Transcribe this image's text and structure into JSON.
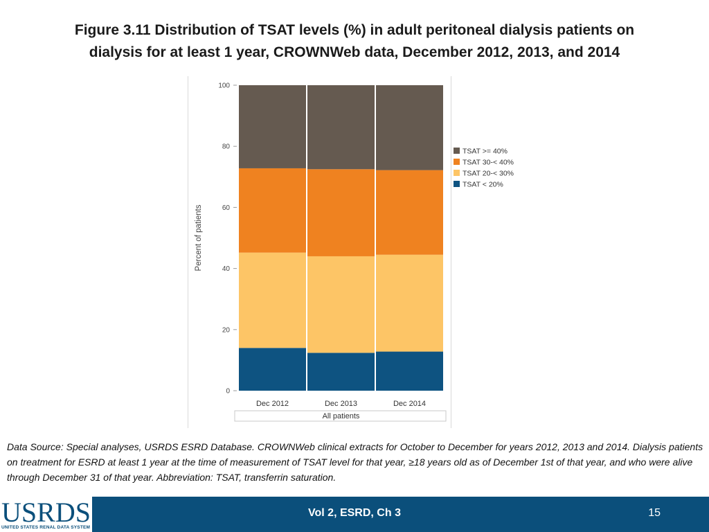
{
  "title_line1": "Figure 3.11 Distribution of TSAT levels (%) in adult peritoneal dialysis patients on",
  "title_line2": "dialysis for at least 1 year, CROWNWeb data, December 2012, 2013, and 2014",
  "chart_data": {
    "type": "bar",
    "stacked": true,
    "categories": [
      "Dec 2012",
      "Dec 2013",
      "Dec 2014"
    ],
    "group_label": "All patients",
    "ylabel": "Percent of patients",
    "ylim": [
      0,
      100
    ],
    "yticks": [
      0,
      20,
      40,
      60,
      80,
      100
    ],
    "legend_position": "right",
    "series": [
      {
        "name": "TSAT < 20%",
        "color": "#0e5381",
        "values": [
          14.0,
          12.4,
          12.8
        ]
      },
      {
        "name": "TSAT 20-< 30%",
        "color": "#fdc566",
        "values": [
          31.2,
          31.6,
          31.7
        ]
      },
      {
        "name": "TSAT 30-< 40%",
        "color": "#ef8220",
        "values": [
          27.6,
          28.5,
          27.7
        ]
      },
      {
        "name": "TSAT >= 40%",
        "color": "#655a50",
        "values": [
          27.2,
          27.5,
          27.8
        ]
      }
    ]
  },
  "footnote": "Data Source: Special analyses, USRDS ESRD Database. CROWNWeb clinical extracts for October to December for years 2012, 2013 and 2014. Dialysis patients on treatment for ESRD at least 1 year at the time of measurement of TSAT level for that year, ≥18 years old as of December 1st of that year, and who were alive through December 31 of that year. Abbreviation: TSAT, transferrin saturation.",
  "footer": {
    "logo": "USRDS",
    "logo_subtitle": "UNITED STATES RENAL DATA SYSTEM",
    "center": "Vol 2, ESRD, Ch 3",
    "page": "15"
  }
}
